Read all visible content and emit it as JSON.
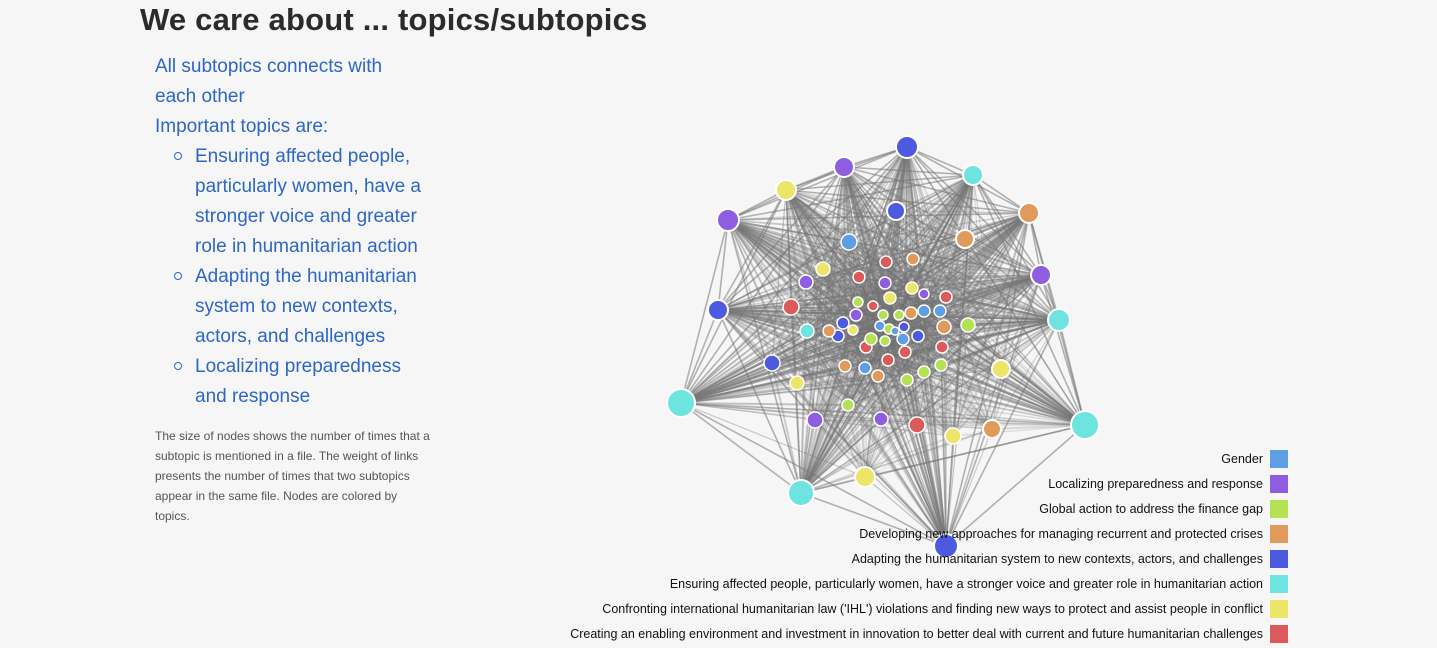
{
  "title": "We care about ... topics/subtopics",
  "intro_lines": [
    "All subtopics connects with each other",
    "Important topics are:"
  ],
  "important_topics": [
    "Ensuring affected people, particularly women, have a stronger voice and greater role in humanitarian action",
    "Adapting the humanitarian system to new contexts, actors, and challenges",
    "Localizing preparedness and response"
  ],
  "note": "The size of nodes shows the number of times that a subtopic is mentioned in a file. The weight of links presents the number of times that two subtopics appear in the same file. Nodes are colored by topics.",
  "legend": [
    {
      "label": "Gender",
      "color": "#5e9ee4"
    },
    {
      "label": "Localizing preparedness and response",
      "color": "#8e5de0"
    },
    {
      "label": "Global action to address the finance gap",
      "color": "#b3e255"
    },
    {
      "label": "Developing new approaches for managing recurrent and protected crises",
      "color": "#e09a5c"
    },
    {
      "label": "Adapting the humanitarian system to new contexts, actors, and challenges",
      "color": "#4d5ae0"
    },
    {
      "label": "Ensuring affected people, particularly women, have a stronger voice and greater role in humanitarian action",
      "color": "#6de4e0"
    },
    {
      "label": "Confronting international humanitarian law ('IHL') violations and finding new ways to protect and assist people in conflict",
      "color": "#ede568"
    },
    {
      "label": "Creating an enabling environment and investment in innovation to better deal with current and future humanitarian challenges",
      "color": "#dc5a5a"
    }
  ]
}
